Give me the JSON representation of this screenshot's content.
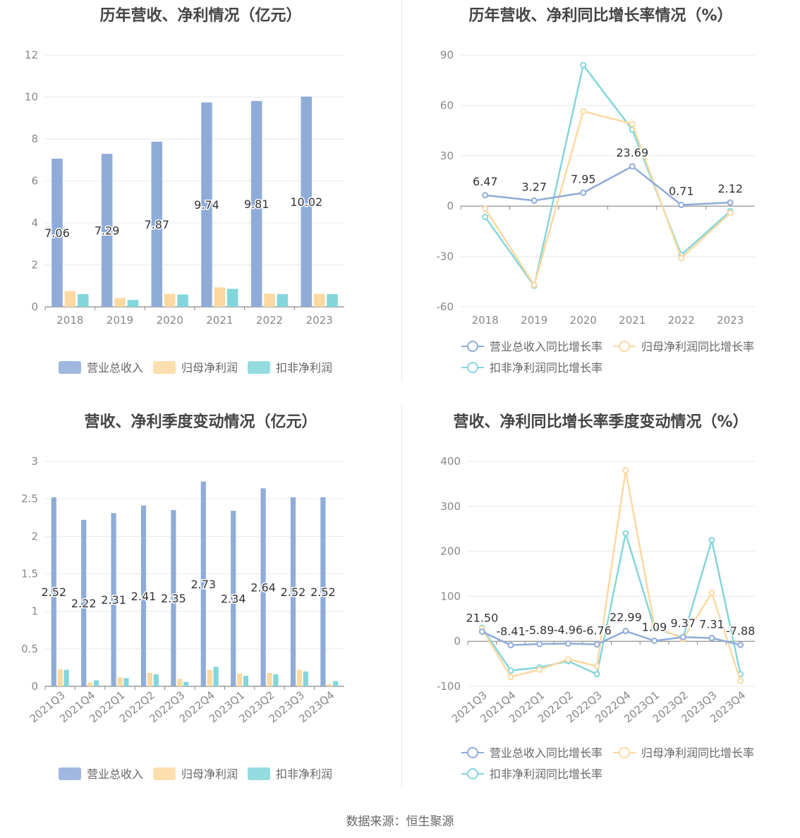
{
  "source": "数据来源：恒生聚源",
  "colors": {
    "revenue": "#8facd9",
    "net_profit": "#fcd9a1",
    "deducted_profit": "#83d6dc",
    "grid": "#e6e9ef",
    "axis": "#999999",
    "text": "#555555",
    "title": "#444444"
  },
  "chart_data": [
    {
      "type": "bar",
      "title": "历年营收、净利情况（亿元）",
      "categories": [
        "2018",
        "2019",
        "2020",
        "2021",
        "2022",
        "2023"
      ],
      "ylim": [
        0,
        12
      ],
      "yticks": [
        "0",
        "2",
        "4",
        "6",
        "8",
        "10",
        "12"
      ],
      "series": [
        {
          "name": "营业总收入",
          "values": [
            7.06,
            7.29,
            7.87,
            9.74,
            9.81,
            10.02
          ],
          "labels": [
            "7.06",
            "7.29",
            "7.87",
            "9.74",
            "9.81",
            "10.02"
          ]
        },
        {
          "name": "归母净利润",
          "values": [
            0.75,
            0.42,
            0.62,
            0.93,
            0.63,
            0.62
          ]
        },
        {
          "name": "扣非净利润",
          "values": [
            0.61,
            0.33,
            0.59,
            0.86,
            0.61,
            0.61
          ]
        }
      ],
      "legend": "bottom"
    },
    {
      "type": "line",
      "title": "历年营收、净利同比增长率情况（%）",
      "categories": [
        "2018",
        "2019",
        "2020",
        "2021",
        "2022",
        "2023"
      ],
      "ylim": [
        -60,
        90
      ],
      "yticks": [
        "-60",
        "-30",
        "0",
        "30",
        "60",
        "90"
      ],
      "series": [
        {
          "name": "营业总收入同比增长率",
          "values": [
            6.47,
            3.27,
            7.95,
            23.69,
            0.71,
            2.12
          ],
          "labels": [
            "6.47",
            "3.27",
            "7.95",
            "23.69",
            "0.71",
            "2.12"
          ]
        },
        {
          "name": "归母净利润同比增长率",
          "values": [
            -1.5,
            -47,
            56.5,
            49,
            -31,
            -4
          ]
        },
        {
          "name": "扣非净利润同比增长率",
          "values": [
            -6.5,
            -47.5,
            84,
            45.5,
            -29,
            -3
          ]
        }
      ],
      "legend": "bottom"
    },
    {
      "type": "bar",
      "title": "营收、净利季度变动情况（亿元）",
      "categories": [
        "2021Q3",
        "2021Q4",
        "2022Q1",
        "2022Q2",
        "2022Q3",
        "2022Q4",
        "2023Q1",
        "2023Q2",
        "2023Q3",
        "2023Q4"
      ],
      "ylim": [
        0,
        3
      ],
      "yticks": [
        "0",
        "0.5",
        "1",
        "1.5",
        "2",
        "2.5",
        "3"
      ],
      "series": [
        {
          "name": "营业总收入",
          "values": [
            2.52,
            2.22,
            2.31,
            2.41,
            2.35,
            2.73,
            2.34,
            2.64,
            2.52,
            2.52
          ],
          "labels": [
            "2.52",
            "2.22",
            "2.31",
            "2.41",
            "2.35",
            "2.73",
            "2.34",
            "2.64",
            "2.52",
            "2.52"
          ]
        },
        {
          "name": "归母净利润",
          "values": [
            0.23,
            0.05,
            0.12,
            0.18,
            0.1,
            0.22,
            0.17,
            0.18,
            0.22,
            0.03
          ]
        },
        {
          "name": "扣非净利润",
          "values": [
            0.22,
            0.08,
            0.11,
            0.16,
            0.06,
            0.26,
            0.14,
            0.16,
            0.2,
            0.07
          ]
        }
      ],
      "legend": "bottom"
    },
    {
      "type": "line",
      "title": "营收、净利同比增长率季度变动情况（%）",
      "categories": [
        "2021Q3",
        "2021Q4",
        "2022Q1",
        "2022Q2",
        "2022Q3",
        "2022Q4",
        "2023Q1",
        "2023Q2",
        "2023Q3",
        "2023Q4"
      ],
      "ylim": [
        -100,
        400
      ],
      "yticks": [
        "-100",
        "0",
        "100",
        "200",
        "300",
        "400"
      ],
      "series": [
        {
          "name": "营业总收入同比增长率",
          "values": [
            21.5,
            -8.41,
            -5.89,
            -4.96,
            -6.76,
            22.99,
            1.09,
            9.37,
            7.31,
            -7.88
          ],
          "labels": [
            "21.50",
            "-8.41",
            "-5.89",
            "-4.96",
            "-6.76",
            "22.99",
            "1.09",
            "9.37",
            "7.31",
            "-7.88"
          ]
        },
        {
          "name": "归母净利润同比增长率",
          "values": [
            28,
            -79,
            -63,
            -40,
            -55,
            380,
            35,
            5,
            108,
            -88
          ]
        },
        {
          "name": "扣非净利润同比增长率",
          "values": [
            30,
            -65,
            -58,
            -44,
            -73,
            240,
            30,
            8,
            225,
            -73
          ]
        }
      ],
      "legend": "bottom"
    }
  ]
}
